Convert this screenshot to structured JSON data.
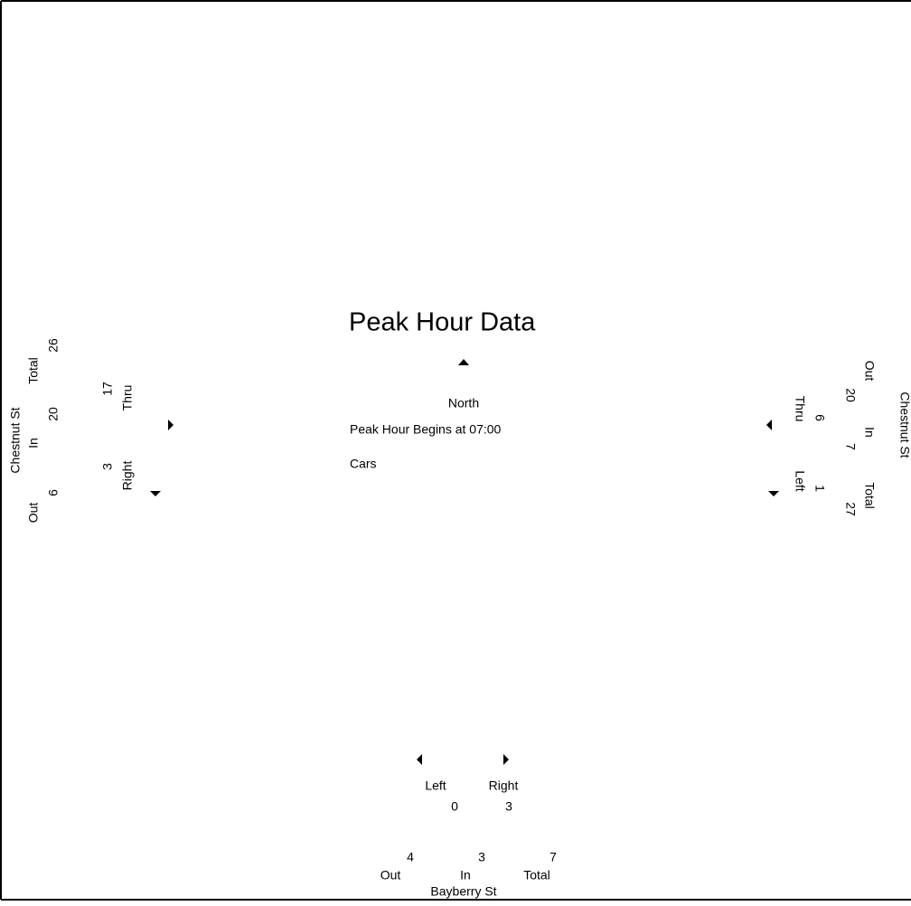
{
  "title": "Peak Hour Data",
  "direction": "North",
  "peak_hour": "Peak Hour Begins at 07:00",
  "vehicle_type": "Cars",
  "west": {
    "street": "Chestnut St",
    "totals": [
      {
        "label": "Out",
        "value": "6"
      },
      {
        "label": "In",
        "value": "20"
      },
      {
        "label": "Total",
        "value": "26"
      }
    ],
    "movements": [
      {
        "label": "Right",
        "value": "3"
      },
      {
        "label": "Thru",
        "value": "17"
      }
    ]
  },
  "east": {
    "street": "Chestnut St",
    "totals": [
      {
        "label": "Out",
        "value": "20"
      },
      {
        "label": "In",
        "value": "7"
      },
      {
        "label": "Total",
        "value": "27"
      }
    ],
    "movements": [
      {
        "label": "Thru",
        "value": "6"
      },
      {
        "label": "Left",
        "value": "1"
      }
    ]
  },
  "south": {
    "street": "Bayberry St",
    "totals": [
      {
        "label": "Out",
        "value": "4"
      },
      {
        "label": "In",
        "value": "3"
      },
      {
        "label": "Total",
        "value": "7"
      }
    ],
    "movements": [
      {
        "label": "Left",
        "value": "0"
      },
      {
        "label": "Right",
        "value": "3"
      }
    ]
  }
}
